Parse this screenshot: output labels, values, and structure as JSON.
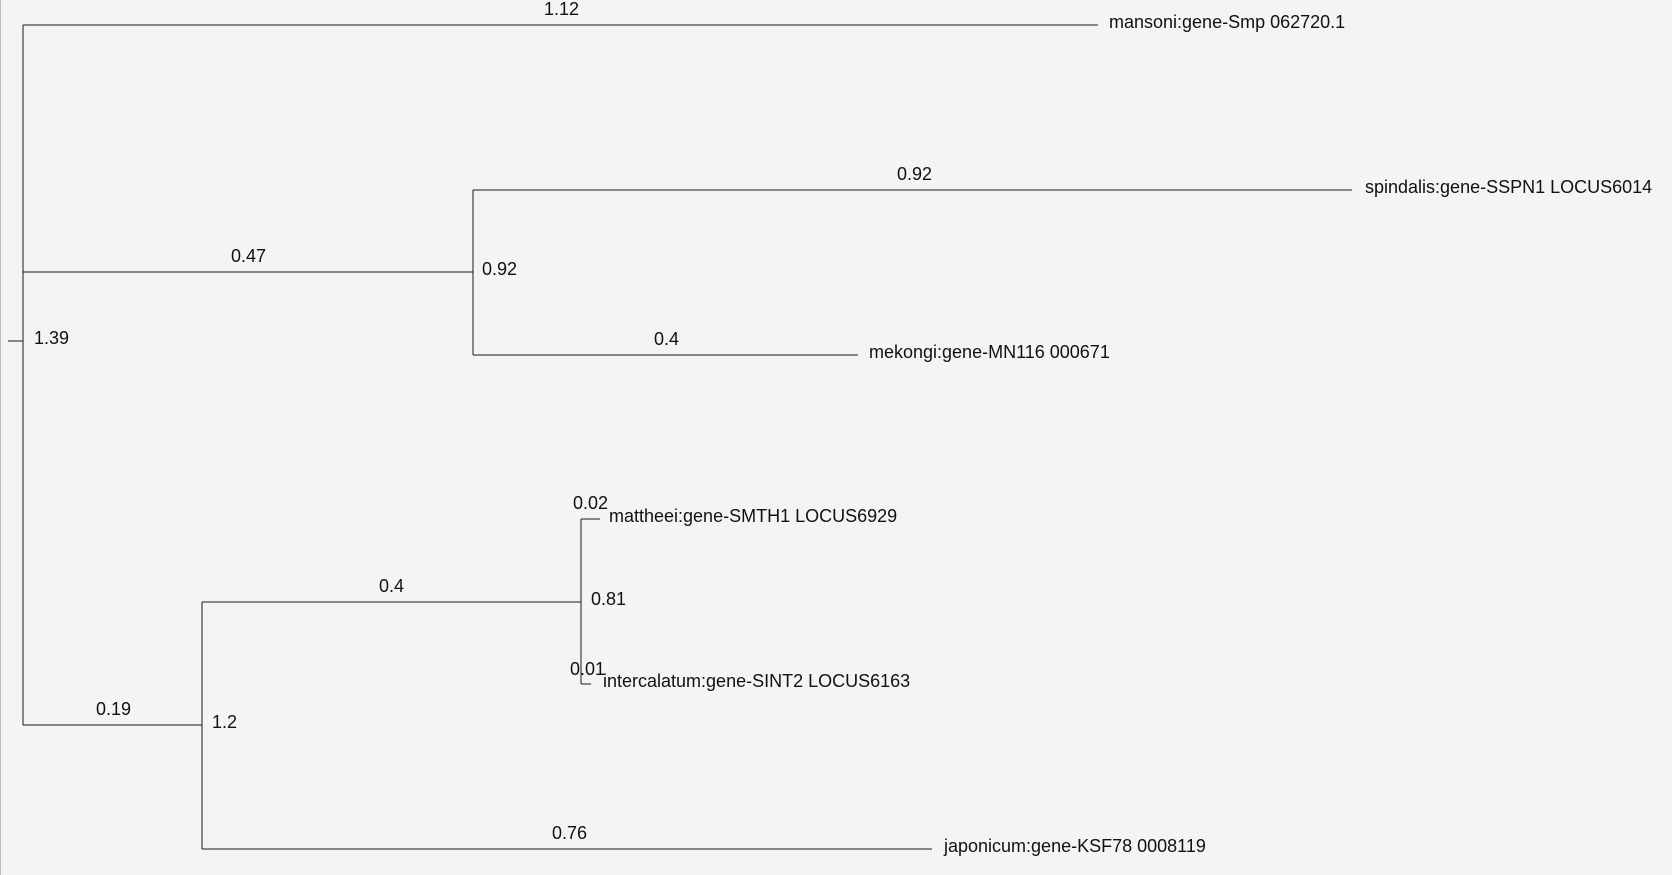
{
  "tree": {
    "root_support": "1.39",
    "top_branch": {
      "length": "1.12",
      "leaf": "mansoni:gene-Smp 062720.1"
    },
    "clade_a": {
      "branch_length": "0.47",
      "support": "0.92",
      "spindalis": {
        "length": "0.92",
        "leaf": "spindalis:gene-SSPN1 LOCUS6014"
      },
      "mekongi": {
        "length": "0.4",
        "leaf": "mekongi:gene-MN116 000671"
      }
    },
    "clade_b": {
      "branch_length": "0.19",
      "support": "1.2",
      "subclade": {
        "branch_length": "0.4",
        "support": "0.81",
        "mattheei": {
          "length": "0.02",
          "leaf": "mattheei:gene-SMTH1 LOCUS6929"
        },
        "intercalatum": {
          "length": "0.01",
          "leaf": "intercalatum:gene-SINT2 LOCUS6163"
        }
      },
      "japonicum": {
        "length": "0.76",
        "leaf": "japonicum:gene-KSF78 0008119"
      }
    }
  }
}
